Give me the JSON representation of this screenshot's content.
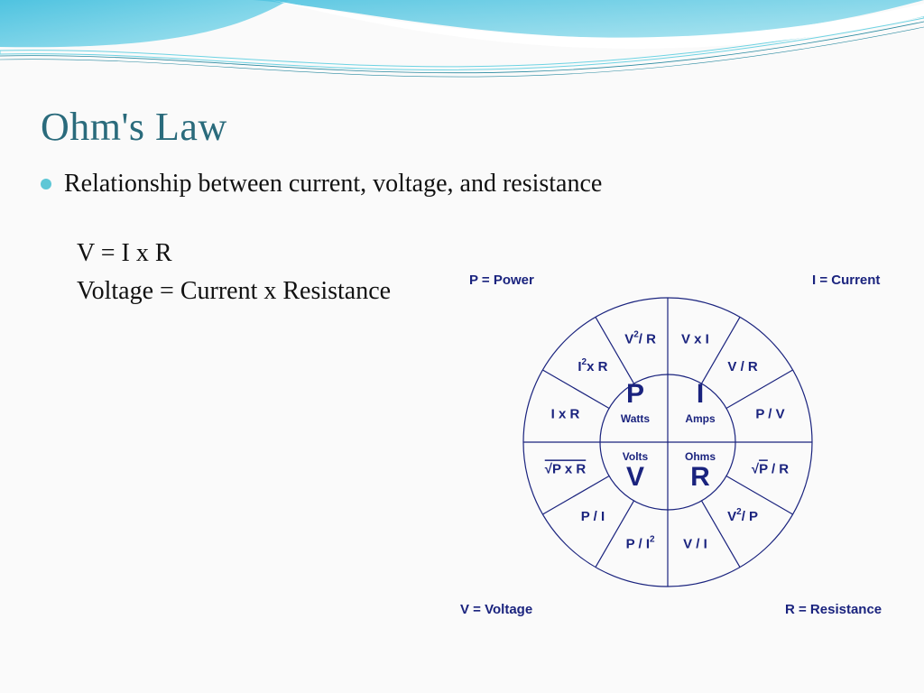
{
  "slide": {
    "title": "Ohm's Law",
    "bullet": "Relationship between current, voltage, and resistance",
    "formula1": "V = I x R",
    "formula2": "Voltage = Current x Resistance"
  },
  "decoration": {
    "wave_gradient_start": "#4fc3e0",
    "wave_gradient_end": "#a8e4f0",
    "wave_line_color": "#2a8aa0",
    "white": "#ffffff",
    "title_color": "#2a6b7c",
    "bullet_color": "#5ec7d6",
    "text_color": "#111111"
  },
  "wheel": {
    "type": "infographic",
    "line_color": "#1a237e",
    "text_color": "#1a237e",
    "background_color": "#ffffff",
    "outer_radius": 160,
    "inner_radius": 75,
    "corners": {
      "tl": "P = Power",
      "tr": "I = Current",
      "bl": "V = Voltage",
      "br": "R = Resistance"
    },
    "center_quadrants": [
      {
        "letter": "P",
        "unit": "Watts"
      },
      {
        "letter": "I",
        "unit": "Amps"
      },
      {
        "letter": "V",
        "unit": "Volts"
      },
      {
        "letter": "R",
        "unit": "Ohms"
      }
    ],
    "segments": [
      {
        "angle": -75,
        "plain": "V x I"
      },
      {
        "angle": -105,
        "sup_base": "V",
        "sup_exp": "2",
        "after": "/ R"
      },
      {
        "angle": -135,
        "sup_base": "I",
        "sup_exp": "2",
        "after": "x R"
      },
      {
        "angle": -165,
        "plain": "I x R"
      },
      {
        "angle": 165,
        "sqrt": "P x R"
      },
      {
        "angle": 135,
        "plain": "P / I"
      },
      {
        "angle": 105,
        "after_base": "P / I",
        "post_sup": "2"
      },
      {
        "angle": 75,
        "plain": "V / I"
      },
      {
        "angle": 45,
        "sup_base": "V",
        "sup_exp": "2",
        "after": "/ P"
      },
      {
        "angle": 15,
        "pre_sqrt": "P",
        "after": " / R"
      },
      {
        "angle": -15,
        "plain": "P / V"
      },
      {
        "angle": -45,
        "plain": "V / R"
      }
    ]
  }
}
